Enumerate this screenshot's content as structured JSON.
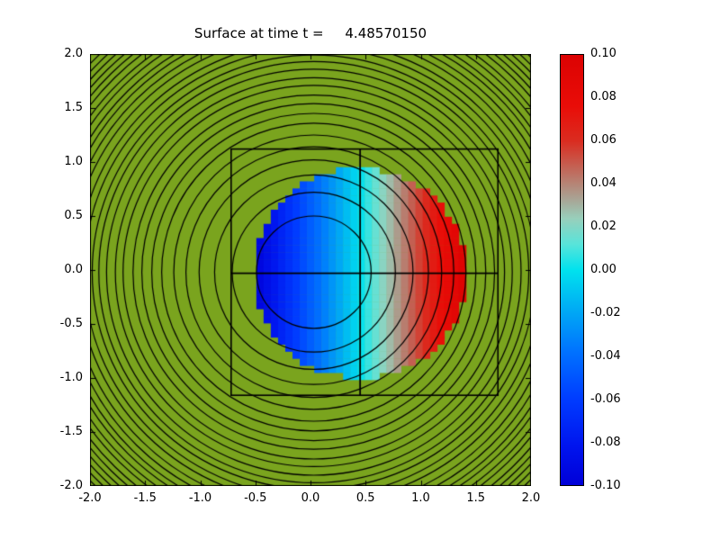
{
  "figure": {
    "background": "#ffffff"
  },
  "chart_data": {
    "type": "heatmap",
    "title": "Surface at time t =     4.48570150",
    "x_range": [
      -2.0,
      2.0
    ],
    "y_range": [
      -2.0,
      2.0
    ],
    "x_ticks": [
      "-2.0",
      "-1.5",
      "-1.0",
      "-0.5",
      "0.0",
      "0.5",
      "1.0",
      "1.5",
      "2.0"
    ],
    "y_ticks": [
      "2.0",
      "1.5",
      "1.0",
      "0.5",
      "0.0",
      "-0.5",
      "-1.0",
      "-1.5",
      "-2.0"
    ],
    "background_value_color": "#7aa41e",
    "grid_cell_size": 0.0656,
    "wave_blob": {
      "center": [
        0.45,
        -0.03
      ],
      "radius": 0.97,
      "value_min": -0.1,
      "value_max": 0.1,
      "gradient_axis": "x"
    },
    "contour_circles": {
      "center": [
        0.03,
        -0.02
      ],
      "color": "#000000",
      "radii": [
        0.52,
        0.74,
        0.9,
        1.04,
        1.16,
        1.27,
        1.38,
        1.47,
        1.56,
        1.64,
        1.73,
        1.8,
        1.88,
        1.95,
        2.01,
        2.08,
        2.14,
        2.21,
        2.27,
        2.33,
        2.38,
        2.44,
        2.49,
        2.55,
        2.6,
        2.65,
        2.7,
        2.75,
        2.8
      ]
    },
    "domain_rect": {
      "x0": -0.72,
      "y0": -1.16,
      "x1": 1.7,
      "y1": 1.12,
      "color": "#000000"
    },
    "crosshair": {
      "x": 0.45,
      "y": -0.03,
      "color": "#000000"
    },
    "colorbar": {
      "min": -0.1,
      "max": 0.1,
      "tick_labels": [
        "0.10",
        "0.08",
        "0.06",
        "0.04",
        "0.02",
        "0.00",
        "-0.02",
        "-0.04",
        "-0.06",
        "-0.08",
        "-0.10"
      ],
      "stops": [
        [
          0.0,
          "#0000d8"
        ],
        [
          0.09,
          "#0014ee"
        ],
        [
          0.2,
          "#003cff"
        ],
        [
          0.31,
          "#0072ff"
        ],
        [
          0.41,
          "#00acf4"
        ],
        [
          0.5,
          "#00e2ee"
        ],
        [
          0.56,
          "#58e4da"
        ],
        [
          0.62,
          "#98cfbb"
        ],
        [
          0.67,
          "#ab9f90"
        ],
        [
          0.73,
          "#c06a5c"
        ],
        [
          0.8,
          "#da2c20"
        ],
        [
          0.88,
          "#e90d08"
        ],
        [
          1.0,
          "#dc0202"
        ]
      ]
    }
  }
}
